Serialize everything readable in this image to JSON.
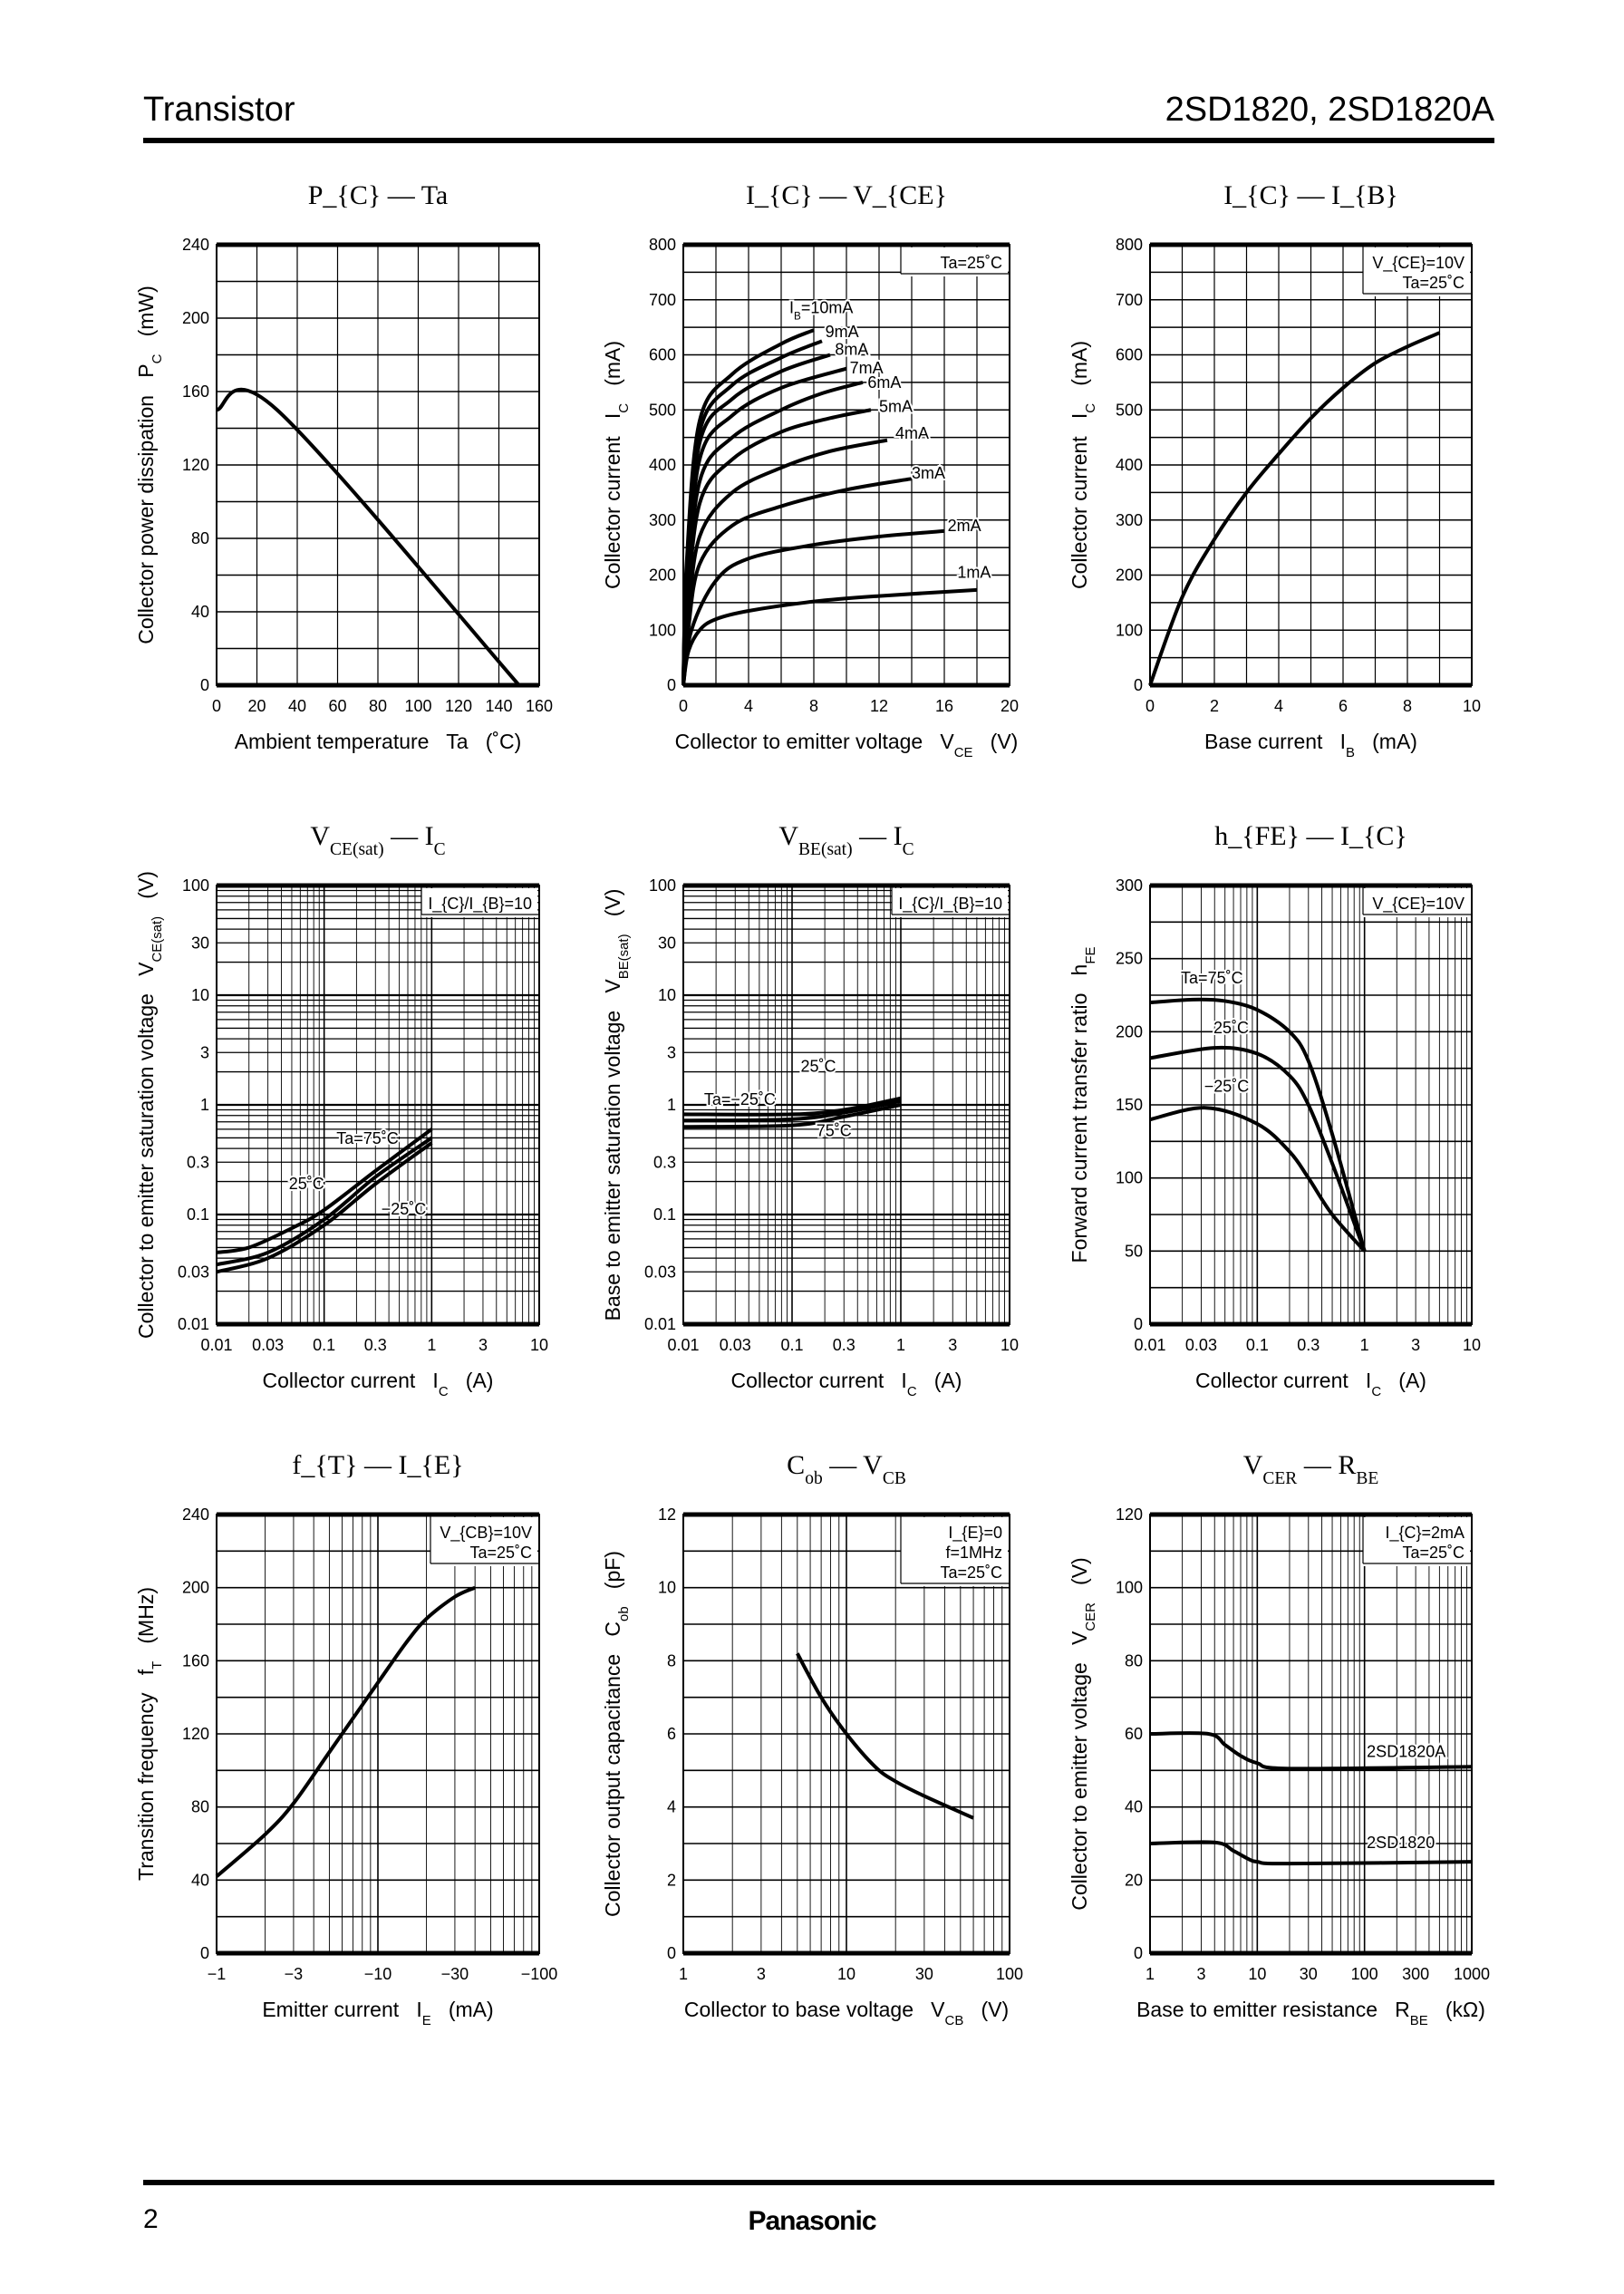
{
  "header": {
    "left": "Transistor",
    "right": "2SD1820, 2SD1820A"
  },
  "footer": {
    "page_number": "2",
    "logo": "Panasonic"
  },
  "chart_data": [
    {
      "type": "line",
      "title": "P_{C} — Ta",
      "xlabel": "Ambient temperature   Ta   (˚C)",
      "ylabel": "Collector power dissipation   P_{C}   (mW)",
      "xscale": "linear",
      "yscale": "linear",
      "xlim": [
        0,
        160
      ],
      "ylim": [
        0,
        240
      ],
      "grid": true,
      "xticks": [
        0,
        20,
        40,
        60,
        80,
        100,
        120,
        140,
        160
      ],
      "xtick_labels": [
        "0",
        "20",
        "40",
        "60",
        "80",
        "100",
        "120",
        "140",
        "160"
      ],
      "yticks": [
        0,
        40,
        80,
        120,
        160,
        200,
        240
      ],
      "ytick_labels": [
        "0",
        "40",
        "80",
        "120",
        "160",
        "200",
        "240"
      ],
      "conditions": [],
      "series": [
        {
          "x": [
            0,
            30,
            150
          ],
          "y": [
            150,
            150,
            0
          ]
        }
      ]
    },
    {
      "type": "line",
      "title": "I_{C} — V_{CE}",
      "xlabel": "Collector to emitter voltage   V_{CE}   (V)",
      "ylabel": "Collector current   I_{C}   (mA)",
      "xscale": "linear",
      "yscale": "linear",
      "xlim": [
        0,
        20
      ],
      "ylim": [
        0,
        800
      ],
      "grid": true,
      "xticks": [
        0,
        4,
        8,
        12,
        16,
        20
      ],
      "xtick_labels": [
        "0",
        "4",
        "8",
        "12",
        "16",
        "20"
      ],
      "yticks": [
        0,
        100,
        200,
        300,
        400,
        500,
        600,
        700,
        800
      ],
      "ytick_labels": [
        "0",
        "100",
        "200",
        "300",
        "400",
        "500",
        "600",
        "700",
        "800"
      ],
      "conditions": [
        "Ta=25˚C"
      ],
      "series": [
        {
          "name": "I_{B}=10mA",
          "x": [
            0,
            0.2,
            1,
            3,
            6,
            8
          ],
          "y": [
            0,
            220,
            480,
            565,
            620,
            645
          ]
        },
        {
          "name": "9mA",
          "x": [
            0,
            0.2,
            1,
            3,
            6,
            8.5
          ],
          "y": [
            0,
            200,
            460,
            545,
            595,
            625
          ]
        },
        {
          "name": "8mA",
          "x": [
            0,
            0.2,
            1,
            3,
            6,
            9
          ],
          "y": [
            0,
            180,
            440,
            520,
            570,
            600
          ]
        },
        {
          "name": "7mA",
          "x": [
            0,
            0.2,
            1,
            3,
            6,
            10
          ],
          "y": [
            0,
            160,
            410,
            490,
            540,
            575
          ]
        },
        {
          "name": "6mA",
          "x": [
            0,
            0.2,
            1,
            3,
            6,
            8.5,
            11
          ],
          "y": [
            0,
            140,
            370,
            450,
            500,
            530,
            550
          ]
        },
        {
          "name": "5mA",
          "x": [
            0,
            0.2,
            1,
            3,
            6,
            9,
            11.5
          ],
          "y": [
            0,
            120,
            330,
            410,
            460,
            485,
            500
          ]
        },
        {
          "name": "4mA",
          "x": [
            0,
            0.3,
            1,
            3,
            6,
            9,
            12.5
          ],
          "y": [
            0,
            120,
            270,
            350,
            395,
            425,
            445
          ]
        },
        {
          "name": "3mA",
          "x": [
            0,
            0.3,
            1,
            3,
            6,
            10,
            14
          ],
          "y": [
            0,
            100,
            220,
            290,
            325,
            355,
            375
          ]
        },
        {
          "name": "2mA",
          "x": [
            0,
            0.5,
            2,
            4,
            8,
            12,
            16
          ],
          "y": [
            0,
            100,
            190,
            230,
            255,
            270,
            280
          ]
        },
        {
          "name": "1mA",
          "x": [
            0,
            0.3,
            1,
            2,
            4,
            8,
            12,
            18
          ],
          "y": [
            0,
            60,
            100,
            120,
            135,
            152,
            162,
            173
          ]
        }
      ]
    },
    {
      "type": "line",
      "title": "I_{C} — I_{B}",
      "xlabel": "Base current   I_{B}   (mA)",
      "ylabel": "Collector current   I_{C}   (mA)",
      "xscale": "linear",
      "yscale": "linear",
      "xlim": [
        0,
        10
      ],
      "ylim": [
        0,
        800
      ],
      "grid": true,
      "xticks": [
        0,
        2,
        4,
        6,
        8,
        10
      ],
      "xtick_labels": [
        "0",
        "2",
        "4",
        "6",
        "8",
        "10"
      ],
      "yticks": [
        0,
        100,
        200,
        300,
        400,
        500,
        600,
        700,
        800
      ],
      "ytick_labels": [
        "0",
        "100",
        "200",
        "300",
        "400",
        "500",
        "600",
        "700",
        "800"
      ],
      "conditions": [
        "V_{CE}=10V",
        "Ta=25˚C"
      ],
      "series": [
        {
          "x": [
            0,
            1,
            2,
            3,
            4,
            5,
            6,
            7,
            8,
            9
          ],
          "y": [
            0,
            160,
            265,
            350,
            420,
            485,
            540,
            585,
            615,
            640
          ]
        }
      ]
    },
    {
      "type": "line",
      "title": "V_{CE(sat)} — I_{C}",
      "xlabel": "Collector current   I_{C}   (A)",
      "ylabel": "Collector to emitter saturation voltage   V_{CE(sat)}   (V)",
      "xscale": "log",
      "yscale": "log",
      "xlim": [
        0.01,
        10
      ],
      "ylim": [
        0.01,
        100
      ],
      "grid": true,
      "xticks": [
        0.01,
        0.03,
        0.1,
        0.3,
        1,
        3,
        10
      ],
      "xtick_labels": [
        "0.01",
        "0.03",
        "0.1",
        "0.3",
        "1",
        "3",
        "10"
      ],
      "yticks": [
        0.01,
        0.03,
        0.1,
        0.3,
        1,
        3,
        10,
        30,
        100
      ],
      "ytick_labels": [
        "0.01",
        "0.03",
        "0.1",
        "0.3",
        "1",
        "3",
        "10",
        "30",
        "100"
      ],
      "conditions": [
        "I_{C}/I_{B}=10"
      ],
      "series": [
        {
          "name": "Ta=75˚C",
          "x": [
            0.01,
            0.02,
            0.05,
            0.1,
            0.3,
            1
          ],
          "y": [
            0.045,
            0.05,
            0.075,
            0.11,
            0.25,
            0.6
          ]
        },
        {
          "name": "25˚C",
          "x": [
            0.01,
            0.03,
            0.1,
            0.3,
            1
          ],
          "y": [
            0.035,
            0.045,
            0.09,
            0.22,
            0.5
          ]
        },
        {
          "name": "−25˚C",
          "x": [
            0.01,
            0.03,
            0.1,
            0.3,
            1
          ],
          "y": [
            0.03,
            0.04,
            0.08,
            0.19,
            0.45
          ]
        }
      ]
    },
    {
      "type": "line",
      "title": "V_{BE(sat)} — I_{C}",
      "xlabel": "Collector current   I_{C}   (A)",
      "ylabel": "Base to emitter saturation voltage   V_{BE(sat)}   (V)",
      "xscale": "log",
      "yscale": "log",
      "xlim": [
        0.01,
        10
      ],
      "ylim": [
        0.01,
        100
      ],
      "grid": true,
      "xticks": [
        0.01,
        0.03,
        0.1,
        0.3,
        1,
        3,
        10
      ],
      "xtick_labels": [
        "0.01",
        "0.03",
        "0.1",
        "0.3",
        "1",
        "3",
        "10"
      ],
      "yticks": [
        0.01,
        0.03,
        0.1,
        0.3,
        1,
        3,
        10,
        30,
        100
      ],
      "ytick_labels": [
        "0.01",
        "0.03",
        "0.1",
        "0.3",
        "1",
        "3",
        "10",
        "30",
        "100"
      ],
      "conditions": [
        "I_{C}/I_{B}=10"
      ],
      "series": [
        {
          "name": "Ta=−25˚C",
          "x": [
            0.01,
            0.1,
            0.3,
            1
          ],
          "y": [
            0.82,
            0.82,
            0.9,
            1.15
          ]
        },
        {
          "name": "25˚C",
          "x": [
            0.01,
            0.1,
            0.3,
            1
          ],
          "y": [
            0.72,
            0.74,
            0.85,
            1.08
          ]
        },
        {
          "name": "75˚C",
          "x": [
            0.01,
            0.1,
            0.3,
            1
          ],
          "y": [
            0.63,
            0.65,
            0.78,
            1.0
          ]
        }
      ]
    },
    {
      "type": "line",
      "title": "h_{FE} — I_{C}",
      "xlabel": "Collector current   I_{C}   (A)",
      "ylabel": "Forward current transfer ratio   h_{FE}",
      "xscale": "log",
      "yscale": "linear",
      "xlim": [
        0.01,
        10
      ],
      "ylim": [
        0,
        300
      ],
      "grid": true,
      "xticks": [
        0.01,
        0.03,
        0.1,
        0.3,
        1,
        3,
        10
      ],
      "xtick_labels": [
        "0.01",
        "0.03",
        "0.1",
        "0.3",
        "1",
        "3",
        "10"
      ],
      "yticks": [
        0,
        50,
        100,
        150,
        200,
        250,
        300
      ],
      "ytick_labels": [
        "0",
        "50",
        "100",
        "150",
        "200",
        "250",
        "300"
      ],
      "conditions": [
        "V_{CE}=10V"
      ],
      "series": [
        {
          "name": "Ta=75˚C",
          "x": [
            0.01,
            0.025,
            0.05,
            0.1,
            0.2,
            0.3,
            0.5,
            1
          ],
          "y": [
            220,
            222,
            221,
            215,
            200,
            180,
            130,
            50
          ]
        },
        {
          "name": "25˚C",
          "x": [
            0.01,
            0.04,
            0.1,
            0.2,
            0.3,
            0.5,
            1
          ],
          "y": [
            182,
            189,
            185,
            170,
            150,
            110,
            50
          ]
        },
        {
          "name": "−25˚C",
          "x": [
            0.01,
            0.033,
            0.1,
            0.2,
            0.3,
            0.5,
            1
          ],
          "y": [
            140,
            148,
            137,
            118,
            100,
            75,
            50
          ]
        }
      ]
    },
    {
      "type": "line",
      "title": "f_{T} — I_{E}",
      "xlabel": "Emitter current   I_{E}   (mA)",
      "ylabel": "Transition frequency   f_{T}   (MHz)",
      "xscale": "log",
      "yscale": "linear",
      "xlim": [
        -1,
        -100
      ],
      "ylim": [
        0,
        240
      ],
      "grid": true,
      "xticks": [
        -1,
        -3,
        -10,
        -30,
        -100
      ],
      "xtick_labels": [
        "−1",
        "−3",
        "−10",
        "−30",
        "−100"
      ],
      "yticks": [
        0,
        40,
        80,
        120,
        160,
        200,
        240
      ],
      "ytick_labels": [
        "0",
        "40",
        "80",
        "120",
        "160",
        "200",
        "240"
      ],
      "conditions": [
        "V_{CB}=10V",
        "Ta=25˚C"
      ],
      "series": [
        {
          "x": [
            -1,
            -2,
            -3,
            -5,
            -10,
            -15,
            -20,
            -30,
            -40
          ],
          "y": [
            42,
            65,
            82,
            110,
            148,
            170,
            183,
            195,
            200
          ]
        }
      ]
    },
    {
      "type": "line",
      "title": "C_{ob} — V_{CB}",
      "xlabel": "Collector to base voltage   V_{CB}   (V)",
      "ylabel": "Collector output capacitance   C_{ob}   (pF)",
      "xscale": "log",
      "yscale": "linear",
      "xlim": [
        1,
        100
      ],
      "ylim": [
        0,
        12
      ],
      "grid": true,
      "xticks": [
        1,
        3,
        10,
        30,
        100
      ],
      "xtick_labels": [
        "1",
        "3",
        "10",
        "30",
        "100"
      ],
      "yticks": [
        0,
        2,
        4,
        6,
        8,
        10,
        12
      ],
      "ytick_labels": [
        "0",
        "2",
        "4",
        "6",
        "8",
        "10",
        "12"
      ],
      "conditions": [
        "I_{E}=0",
        "f=1MHz",
        "Ta=25˚C"
      ],
      "series": [
        {
          "x": [
            5,
            7,
            10,
            15,
            20,
            30,
            60
          ],
          "y": [
            8.2,
            7,
            6,
            5.1,
            4.7,
            4.3,
            3.7
          ]
        }
      ]
    },
    {
      "type": "line",
      "title": "V_{CER} — R_{BE}",
      "xlabel": "Base to emitter resistance   R_{BE}   (kΩ)",
      "ylabel": "Collector to emitter voltage   V_{CER}   (V)",
      "xscale": "log",
      "yscale": "linear",
      "xlim": [
        1,
        1000
      ],
      "ylim": [
        0,
        120
      ],
      "grid": true,
      "xticks": [
        1,
        3,
        10,
        30,
        100,
        300,
        1000
      ],
      "xtick_labels": [
        "1",
        "3",
        "10",
        "30",
        "100",
        "300",
        "1000"
      ],
      "yticks": [
        0,
        20,
        40,
        60,
        80,
        100,
        120
      ],
      "ytick_labels": [
        "0",
        "20",
        "40",
        "60",
        "80",
        "100",
        "120"
      ],
      "conditions": [
        "I_{C}=2mA",
        "Ta=25˚C"
      ],
      "series": [
        {
          "name": "2SD1820A",
          "x": [
            1,
            3.5,
            5,
            7,
            10,
            20,
            1000
          ],
          "y": [
            60,
            60,
            57,
            54,
            52,
            50.5,
            51
          ]
        },
        {
          "name": "2SD1820",
          "x": [
            1,
            4,
            6,
            8,
            10,
            20,
            1000
          ],
          "y": [
            30,
            30.3,
            28,
            26,
            25,
            24.5,
            25
          ]
        }
      ]
    }
  ]
}
